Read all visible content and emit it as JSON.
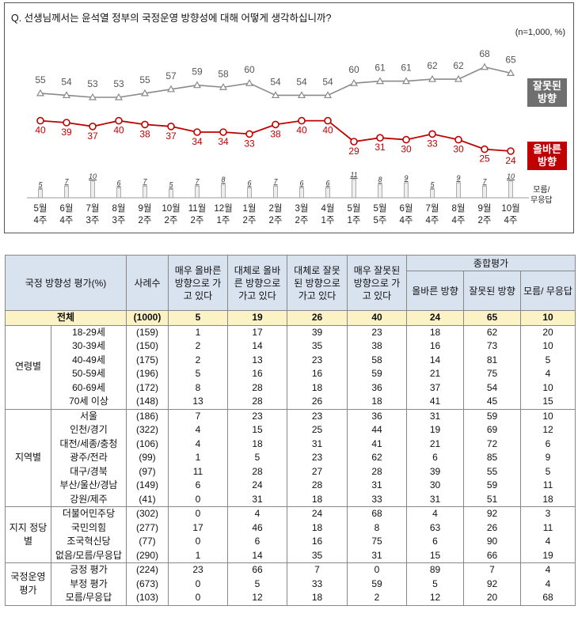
{
  "question": "Q. 선생님께서는 윤석열 정부의 국정운영 방향성에 대해 어떻게 생각하십니까?",
  "note": "(n=1,000, %)",
  "legend": {
    "wrong": [
      "잘못된",
      "방향"
    ],
    "right": [
      "올바른",
      "방향"
    ],
    "dk": [
      "모름/",
      "무응답"
    ]
  },
  "colors": {
    "wrong": "#8a8a8a",
    "right": "#c00000",
    "dk_bar": "#eeeeee"
  },
  "chart_data": {
    "type": "line",
    "categories": [
      "5월 4주",
      "6월 4주",
      "7월 3주",
      "8월 3주",
      "9월 2주",
      "10월 2주",
      "11월 2주",
      "12월 1주",
      "1월 2주",
      "2월 2주",
      "3월 2주",
      "4월 1주",
      "5월 1주",
      "5월 5주",
      "6월 4주",
      "7월 4주",
      "8월 4주",
      "9월 2주",
      "10월 4주"
    ],
    "category_lines": [
      [
        "5월",
        "4주"
      ],
      [
        "6월",
        "4주"
      ],
      [
        "7월",
        "3주"
      ],
      [
        "8월",
        "3주"
      ],
      [
        "9월",
        "2주"
      ],
      [
        "10월",
        "2주"
      ],
      [
        "11월",
        "2주"
      ],
      [
        "12월",
        "1주"
      ],
      [
        "1월",
        "2주"
      ],
      [
        "2월",
        "2주"
      ],
      [
        "3월",
        "2주"
      ],
      [
        "4월",
        "1주"
      ],
      [
        "5월",
        "1주"
      ],
      [
        "5월",
        "5주"
      ],
      [
        "6월",
        "4주"
      ],
      [
        "7월",
        "4주"
      ],
      [
        "8월",
        "4주"
      ],
      [
        "9월",
        "2주"
      ],
      [
        "10월",
        "4주"
      ]
    ],
    "series": [
      {
        "name": "잘못된 방향",
        "type": "line",
        "values": [
          55,
          54,
          53,
          53,
          55,
          57,
          59,
          58,
          60,
          54,
          54,
          54,
          60,
          61,
          61,
          62,
          62,
          68,
          65
        ]
      },
      {
        "name": "올바른 방향",
        "type": "line",
        "values": [
          40,
          39,
          37,
          40,
          38,
          37,
          34,
          34,
          33,
          38,
          40,
          40,
          29,
          31,
          30,
          33,
          30,
          25,
          24
        ]
      },
      {
        "name": "모름/무응답",
        "type": "bar",
        "values": [
          5,
          7,
          10,
          6,
          7,
          5,
          7,
          8,
          6,
          7,
          6,
          6,
          11,
          8,
          9,
          5,
          9,
          7,
          10
        ]
      }
    ]
  },
  "table": {
    "header": {
      "group_col": "국정 방향성 평가(%)",
      "sample": "사례수",
      "cols": [
        "매우 올바른 방향으로 가고 있다",
        "대체로 올바른 방향으로 가고 있다",
        "대체로 잘못된 방향으로 가고 있다",
        "매우 잘못된 방향으로 가고 있다"
      ],
      "summary_title": "종합평가",
      "summary": [
        "올바른 방향",
        "잘못된 방향",
        "모름/ 무응답"
      ]
    },
    "total": {
      "label": "전체",
      "n": "(1000)",
      "v": [
        "5",
        "19",
        "26",
        "40",
        "24",
        "65",
        "10"
      ]
    },
    "groups": [
      {
        "name": "연령별",
        "rows": [
          {
            "label": "18-29세",
            "n": "(159)",
            "v": [
              "1",
              "17",
              "39",
              "23",
              "18",
              "62",
              "20"
            ]
          },
          {
            "label": "30-39세",
            "n": "(150)",
            "v": [
              "2",
              "14",
              "35",
              "38",
              "16",
              "73",
              "10"
            ]
          },
          {
            "label": "40-49세",
            "n": "(175)",
            "v": [
              "2",
              "13",
              "23",
              "58",
              "14",
              "81",
              "5"
            ]
          },
          {
            "label": "50-59세",
            "n": "(196)",
            "v": [
              "5",
              "16",
              "16",
              "59",
              "21",
              "75",
              "4"
            ]
          },
          {
            "label": "60-69세",
            "n": "(172)",
            "v": [
              "8",
              "28",
              "18",
              "36",
              "37",
              "54",
              "10"
            ]
          },
          {
            "label": "70세 이상",
            "n": "(148)",
            "v": [
              "13",
              "28",
              "26",
              "18",
              "41",
              "45",
              "15"
            ]
          }
        ]
      },
      {
        "name": "지역별",
        "rows": [
          {
            "label": "서울",
            "n": "(186)",
            "v": [
              "7",
              "23",
              "23",
              "36",
              "31",
              "59",
              "10"
            ]
          },
          {
            "label": "인천/경기",
            "n": "(322)",
            "v": [
              "4",
              "15",
              "25",
              "44",
              "19",
              "69",
              "12"
            ]
          },
          {
            "label": "대전/세종/충청",
            "n": "(106)",
            "v": [
              "4",
              "18",
              "31",
              "41",
              "21",
              "72",
              "6"
            ]
          },
          {
            "label": "광주/전라",
            "n": "(99)",
            "v": [
              "1",
              "5",
              "23",
              "62",
              "6",
              "85",
              "9"
            ]
          },
          {
            "label": "대구/경북",
            "n": "(97)",
            "v": [
              "11",
              "28",
              "27",
              "28",
              "39",
              "55",
              "5"
            ]
          },
          {
            "label": "부산/울산/경남",
            "n": "(149)",
            "v": [
              "6",
              "24",
              "28",
              "31",
              "30",
              "59",
              "11"
            ]
          },
          {
            "label": "강원/제주",
            "n": "(41)",
            "v": [
              "0",
              "31",
              "18",
              "33",
              "31",
              "51",
              "18"
            ]
          }
        ]
      },
      {
        "name": "지지 정당별",
        "rows": [
          {
            "label": "더불어민주당",
            "n": "(302)",
            "v": [
              "0",
              "4",
              "24",
              "68",
              "4",
              "92",
              "3"
            ]
          },
          {
            "label": "국민의힘",
            "n": "(277)",
            "v": [
              "17",
              "46",
              "18",
              "8",
              "63",
              "26",
              "11"
            ]
          },
          {
            "label": "조국혁신당",
            "n": "(77)",
            "v": [
              "0",
              "6",
              "16",
              "75",
              "6",
              "90",
              "4"
            ]
          },
          {
            "label": "없음/모름/무응답",
            "n": "(290)",
            "v": [
              "1",
              "14",
              "35",
              "31",
              "15",
              "66",
              "19"
            ]
          }
        ]
      },
      {
        "name": "국정운영 평가",
        "rows": [
          {
            "label": "긍정 평가",
            "n": "(224)",
            "v": [
              "23",
              "66",
              "7",
              "0",
              "89",
              "7",
              "4"
            ]
          },
          {
            "label": "부정 평가",
            "n": "(673)",
            "v": [
              "0",
              "5",
              "33",
              "59",
              "5",
              "92",
              "4"
            ]
          },
          {
            "label": "모름/무응답",
            "n": "(103)",
            "v": [
              "0",
              "12",
              "18",
              "2",
              "12",
              "20",
              "68"
            ]
          }
        ]
      }
    ]
  }
}
